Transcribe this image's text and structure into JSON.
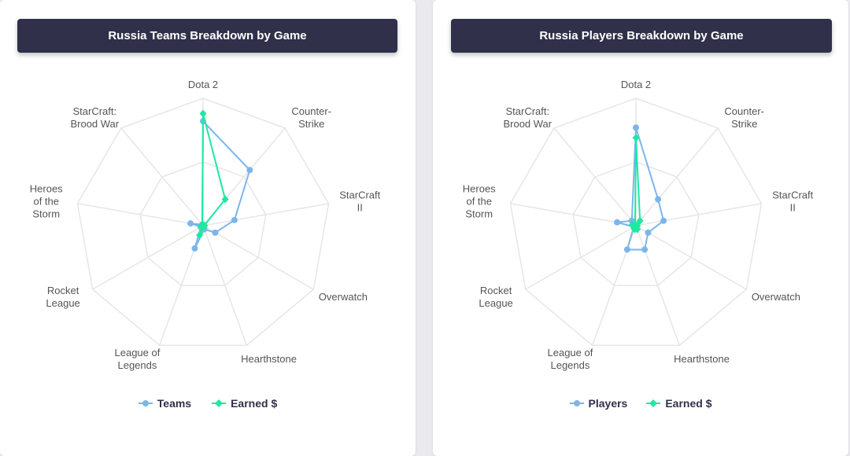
{
  "colors": {
    "teams": "#7cb5ec",
    "earned": "#1de9a1",
    "grid": "#e6e6e6",
    "label": "#555555",
    "title_bg": "#30304a"
  },
  "chart_data": [
    {
      "type": "radar",
      "title": "Russia Teams Breakdown by Game",
      "categories": [
        "Dota 2",
        "Counter-Strike",
        "StarCraft II",
        "Overwatch",
        "Hearthstone",
        "League of Legends",
        "Rocket League",
        "Heroes of the Storm",
        "StarCraft: Brood War"
      ],
      "category_lines": [
        [
          "Dota 2"
        ],
        [
          "Counter-",
          "Strike"
        ],
        [
          "StarCraft",
          "II"
        ],
        [
          "Overwatch"
        ],
        [
          "Hearthstone"
        ],
        [
          "League of",
          "Legends"
        ],
        [
          "Rocket",
          "League"
        ],
        [
          "Heroes",
          "of the",
          "Storm"
        ],
        [
          "StarCraft:",
          "Brood War"
        ]
      ],
      "rmax": 100,
      "series": [
        {
          "name": "Teams",
          "color": "#7cb5ec",
          "marker": "circle",
          "values": [
            82,
            57,
            25,
            11,
            3,
            19,
            2,
            10,
            1
          ]
        },
        {
          "name": "Earned $",
          "color": "#1de9a1",
          "marker": "diamond",
          "values": [
            88,
            27,
            1,
            1,
            1,
            8,
            2,
            1,
            1
          ]
        }
      ],
      "legend": "bottom-center"
    },
    {
      "type": "radar",
      "title": "Russia Players Breakdown by Game",
      "categories": [
        "Dota 2",
        "Counter-Strike",
        "StarCraft II",
        "Overwatch",
        "Hearthstone",
        "League of Legends",
        "Rocket League",
        "Heroes of the Storm",
        "StarCraft: Brood War"
      ],
      "category_lines": [
        [
          "Dota 2"
        ],
        [
          "Counter-",
          "Strike"
        ],
        [
          "StarCraft",
          "II"
        ],
        [
          "Overwatch"
        ],
        [
          "Hearthstone"
        ],
        [
          "League of",
          "Legends"
        ],
        [
          "Rocket",
          "League"
        ],
        [
          "Heroes",
          "of the",
          "Storm"
        ],
        [
          "StarCraft:",
          "Brood War"
        ]
      ],
      "rmax": 100,
      "series": [
        {
          "name": "Players",
          "color": "#7cb5ec",
          "marker": "circle",
          "values": [
            77,
            27,
            22,
            11,
            20,
            20,
            2,
            15,
            5
          ]
        },
        {
          "name": "Earned $",
          "color": "#1de9a1",
          "marker": "diamond",
          "values": [
            69,
            5,
            1,
            1,
            3,
            3,
            1,
            3,
            1
          ]
        }
      ],
      "legend": "bottom-center"
    }
  ]
}
